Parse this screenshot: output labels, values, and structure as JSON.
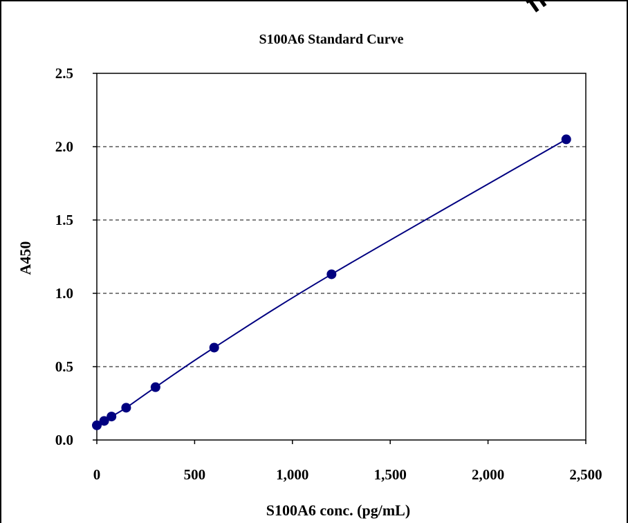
{
  "watermark_text": "ff",
  "chart_data": {
    "type": "scatter",
    "title": "S100A6 Standard Curve",
    "xlabel": "S100A6 conc. (pg/mL)",
    "ylabel": "A450",
    "xlim": [
      0,
      2500
    ],
    "ylim": [
      0,
      2.5
    ],
    "x_ticks": [
      0,
      500,
      1000,
      1500,
      2000,
      2500
    ],
    "x_tick_labels": [
      "0",
      "500",
      "1,000",
      "1,500",
      "2,000",
      "2,500"
    ],
    "y_ticks": [
      0,
      0.5,
      1.0,
      1.5,
      2.0,
      2.5
    ],
    "y_tick_labels": [
      "0.0",
      "0.5",
      "1.0",
      "1.5",
      "2.0",
      "2.5"
    ],
    "grid": "horizontal dashed",
    "point_color": "#000080",
    "line_color": "#000080",
    "series": [
      {
        "x": [
          0,
          37.5,
          75,
          150,
          300,
          600,
          1200,
          2400
        ],
        "y": [
          0.1,
          0.13,
          0.16,
          0.22,
          0.36,
          0.63,
          1.13,
          2.05
        ],
        "fit": "smooth curve"
      }
    ]
  }
}
